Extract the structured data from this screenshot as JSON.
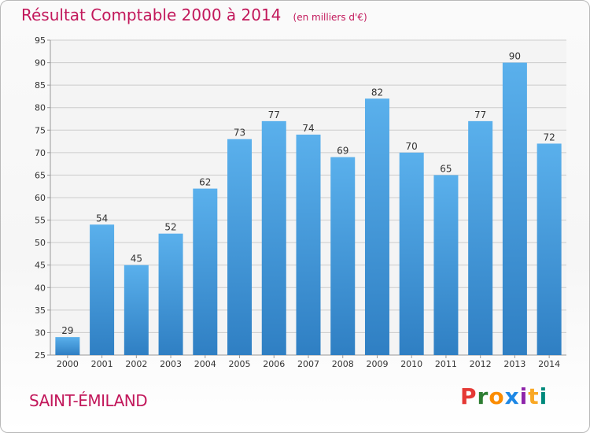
{
  "chart_data": {
    "type": "bar",
    "title": "Résultat Comptable 2000 à 2014",
    "subtitle": "(en milliers d'€)",
    "categories": [
      "2000",
      "2001",
      "2002",
      "2003",
      "2004",
      "2005",
      "2006",
      "2007",
      "2008",
      "2009",
      "2010",
      "2011",
      "2012",
      "2013",
      "2014"
    ],
    "values": [
      29,
      54,
      45,
      52,
      62,
      73,
      77,
      74,
      69,
      82,
      70,
      65,
      77,
      90,
      72
    ],
    "ylim": [
      25,
      95
    ],
    "yticks": [
      25,
      30,
      35,
      40,
      45,
      50,
      55,
      60,
      65,
      70,
      75,
      80,
      85,
      90,
      95
    ],
    "grid": true,
    "bar_color": "#4a9fdf"
  },
  "footer": {
    "town": "SAINT-ÉMILAND",
    "logo_letters": [
      "P",
      "r",
      "o",
      "x",
      "i",
      "t",
      "i"
    ],
    "logo_colors": [
      "#e53935",
      "#2e7d32",
      "#fb8c00",
      "#1e88e5",
      "#8e24aa",
      "#f9a825",
      "#00897b"
    ]
  },
  "colors": {
    "accent": "#c2185b",
    "grid": "#cccccc"
  }
}
